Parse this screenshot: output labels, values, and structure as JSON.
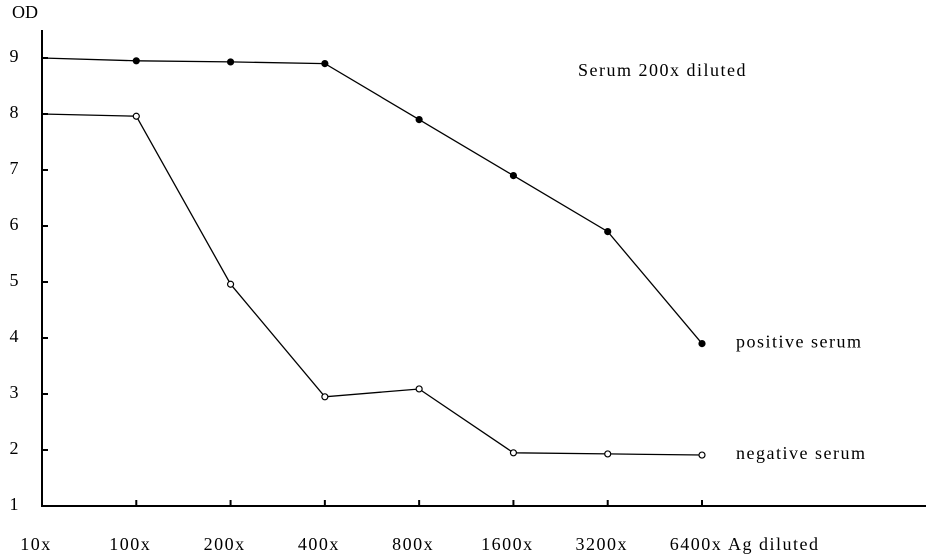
{
  "chart_data": {
    "type": "line",
    "title": "Serum 200x diluted",
    "y_label": "OD",
    "x_label": "Ag  diluted",
    "categories": [
      "10x",
      "100x",
      "200x",
      "400x",
      "800x",
      "1600x",
      "3200x",
      "6400x"
    ],
    "series": [
      {
        "name": "positive serum",
        "color": "#000000",
        "marker": "filled",
        "values": [
          9.0,
          8.95,
          8.93,
          8.9,
          7.9,
          6.9,
          5.9,
          3.9
        ]
      },
      {
        "name": "negative serum",
        "color": "#000000",
        "marker": "open",
        "values": [
          8.0,
          7.96,
          4.96,
          2.95,
          3.09,
          1.95,
          1.93,
          1.91
        ]
      }
    ],
    "ylim": [
      1,
      9
    ],
    "yticks": [
      1,
      2,
      3,
      4,
      5,
      6,
      7,
      8,
      9
    ],
    "grid": false
  }
}
